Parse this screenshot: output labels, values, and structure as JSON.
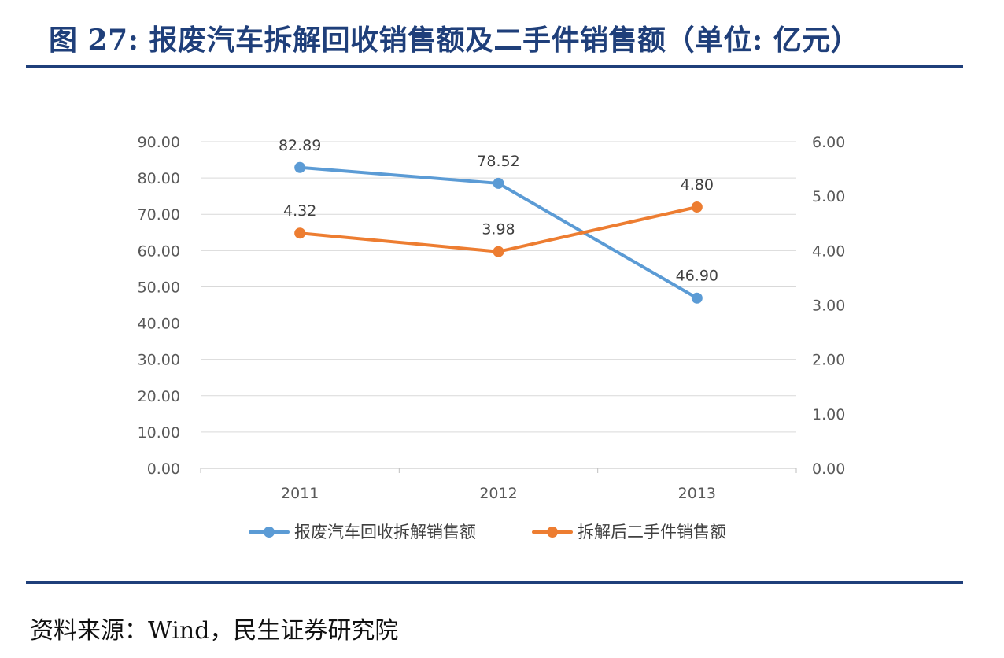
{
  "figure": {
    "title": "图 27: 报废汽车拆解回收销售额及二手件销售额（单位: 亿元）",
    "source": "资料来源：Wind，民生证券研究院"
  },
  "chart_data": {
    "type": "line",
    "categories": [
      "2011",
      "2012",
      "2013"
    ],
    "series": [
      {
        "name": "报废汽车回收拆解销售额",
        "axis": "left",
        "color": "#5b9bd5",
        "values": [
          82.89,
          78.52,
          46.9
        ],
        "labels": [
          "82.89",
          "78.52",
          "46.90"
        ]
      },
      {
        "name": "拆解后二手件销售额",
        "axis": "right",
        "color": "#ed7d31",
        "values": [
          4.32,
          3.98,
          4.8
        ],
        "labels": [
          "4.32",
          "3.98",
          "4.80"
        ]
      }
    ],
    "y_left": {
      "min": 0,
      "max": 90,
      "ticks": [
        "0.00",
        "10.00",
        "20.00",
        "30.00",
        "40.00",
        "50.00",
        "60.00",
        "70.00",
        "80.00",
        "90.00"
      ]
    },
    "y_right": {
      "min": 0,
      "max": 6,
      "ticks": [
        "0.00",
        "1.00",
        "2.00",
        "3.00",
        "4.00",
        "5.00",
        "6.00"
      ]
    },
    "grid": true,
    "legend": "bottom"
  }
}
